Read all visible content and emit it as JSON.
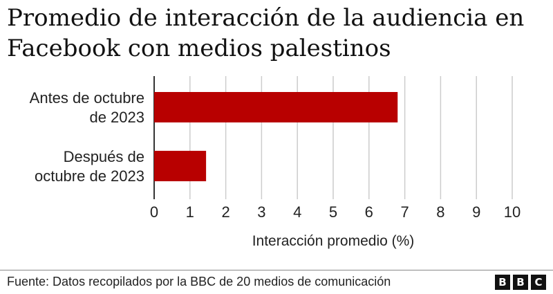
{
  "chart_data": {
    "type": "bar",
    "orientation": "horizontal",
    "title": "Promedio de interacción de la audiencia en Facebook con medios palestinos",
    "categories": [
      "Antes de octubre de 2023",
      "Después de octubre de 2023"
    ],
    "category_lines": [
      [
        "Antes de octubre",
        "de 2023"
      ],
      [
        "Después de",
        "octubre de 2023"
      ]
    ],
    "values": [
      6.8,
      1.45
    ],
    "xlabel": "Interacción promedio (%)",
    "ylabel": "",
    "xlim": [
      0,
      10
    ],
    "xticks": [
      "0",
      "1",
      "2",
      "3",
      "4",
      "5",
      "6",
      "7",
      "8",
      "9",
      "10"
    ],
    "grid": true,
    "bar_color": "#b80000",
    "grid_color": "#cccccc"
  },
  "footer": {
    "source": "Fuente: Datos recopilados por la BBC de 20 medios de comunicación",
    "logo_letters": [
      "B",
      "B",
      "C"
    ]
  }
}
